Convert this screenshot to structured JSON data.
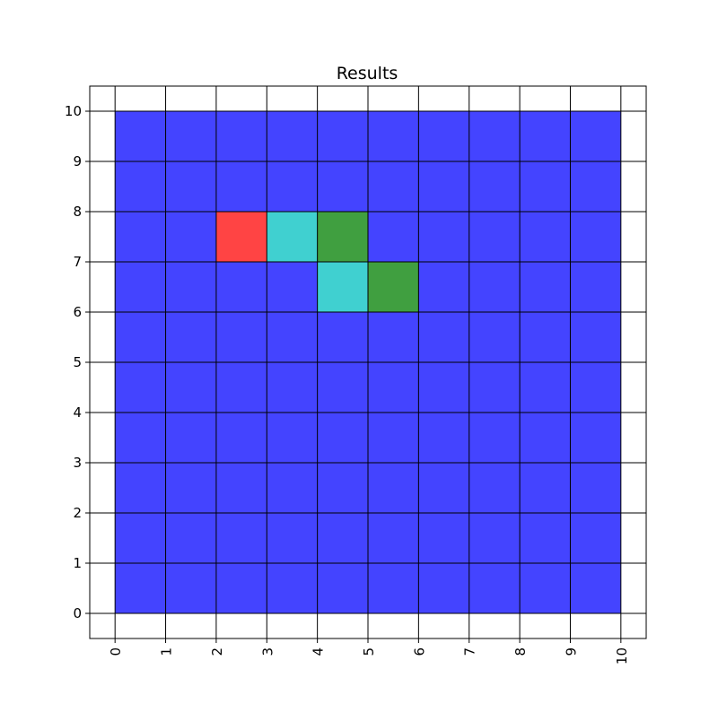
{
  "chart_data": {
    "type": "heatmap",
    "title": "Results",
    "xlabel": "",
    "ylabel": "",
    "xlim": [
      -0.5,
      10.5
    ],
    "ylim": [
      -0.5,
      10.5
    ],
    "x_ticks": [
      "0",
      "1",
      "2",
      "3",
      "4",
      "5",
      "6",
      "7",
      "8",
      "9",
      "10"
    ],
    "y_ticks": [
      "0",
      "1",
      "2",
      "3",
      "4",
      "5",
      "6",
      "7",
      "8",
      "9",
      "10"
    ],
    "x_tick_rotation": "vertical",
    "grid": true,
    "grid_size": {
      "cols": 10,
      "rows": 10
    },
    "default_color": "#4444ff",
    "colors": {
      "blue": "#4444ff",
      "red": "#ff4444",
      "cyan": "#40d0d0",
      "green": "#409f40"
    },
    "highlighted_cells": [
      {
        "x": 2,
        "y": 7,
        "color": "red"
      },
      {
        "x": 3,
        "y": 7,
        "color": "cyan"
      },
      {
        "x": 4,
        "y": 7,
        "color": "green"
      },
      {
        "x": 4,
        "y": 6,
        "color": "cyan"
      },
      {
        "x": 5,
        "y": 6,
        "color": "green"
      }
    ]
  }
}
